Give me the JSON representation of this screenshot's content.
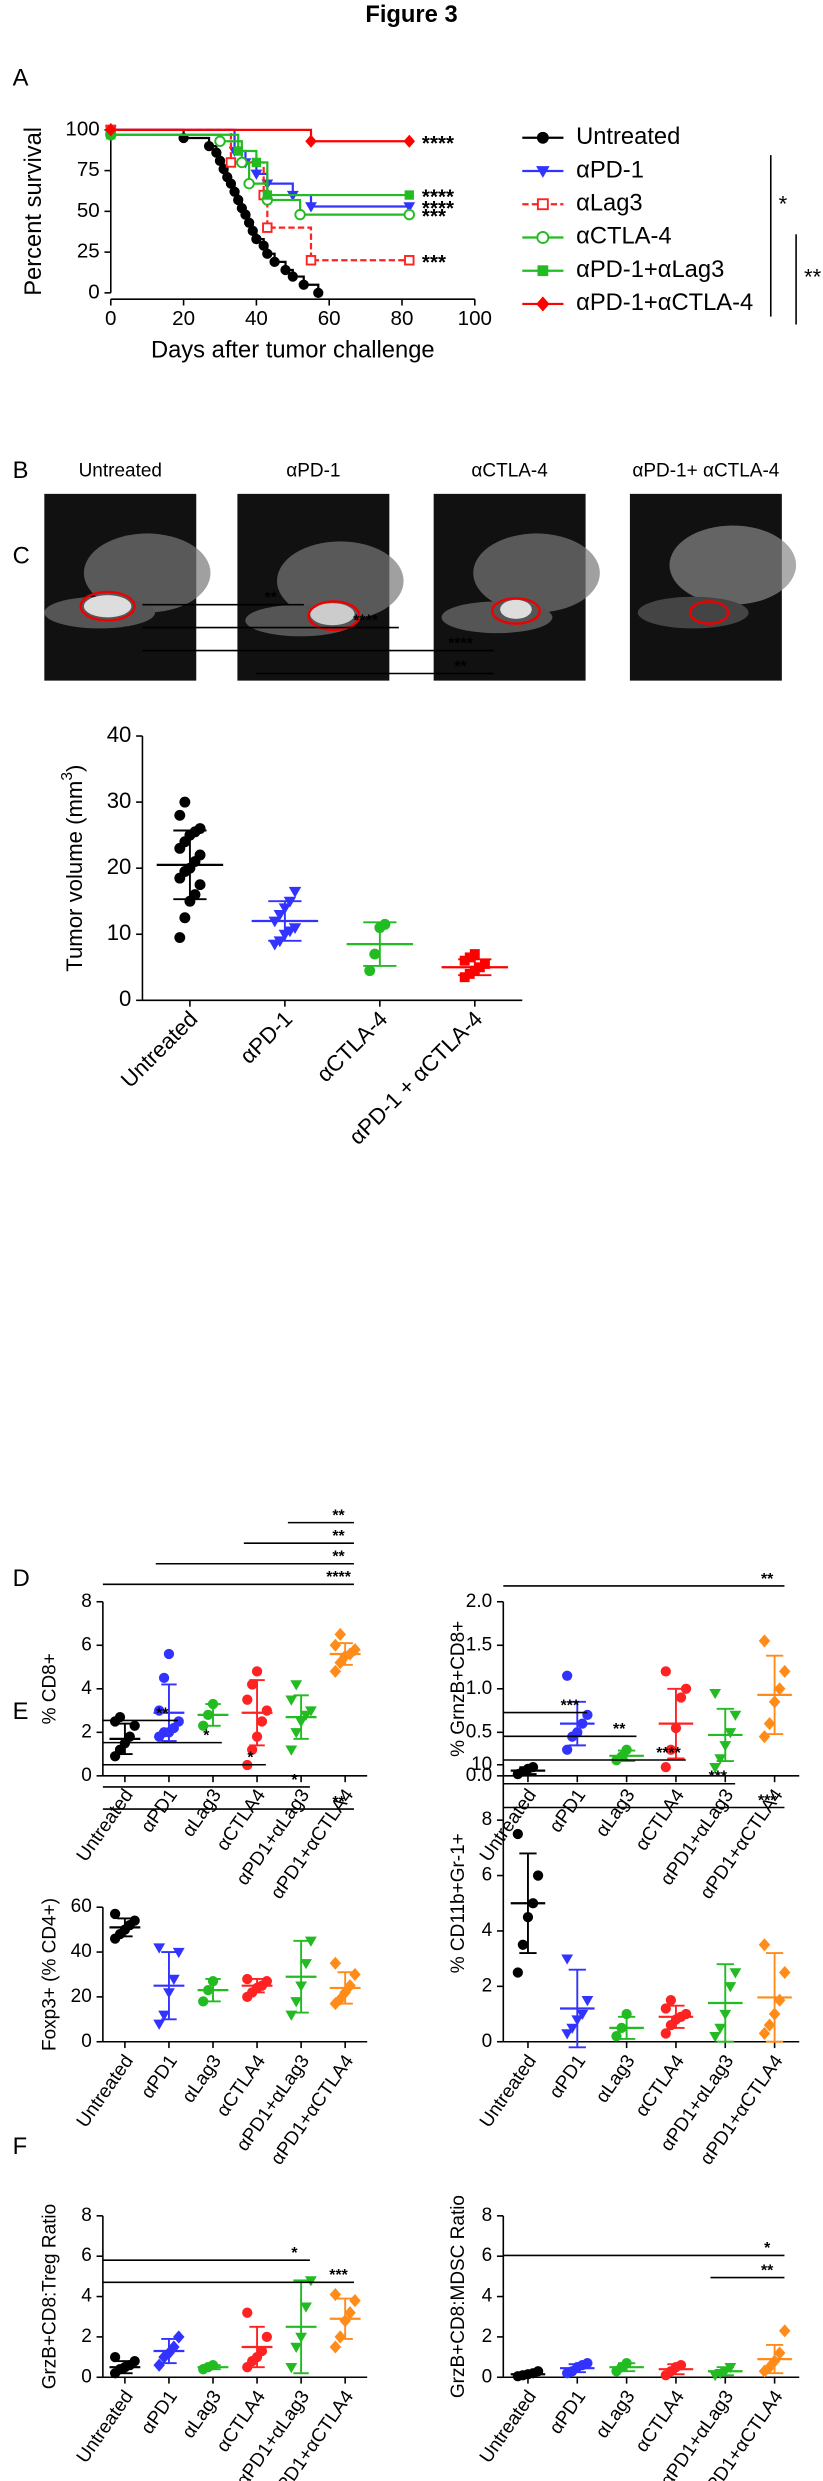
{
  "title": "Figure 3",
  "images": {
    "panel": "B",
    "labels": [
      "Untreated",
      "αPD-1",
      "αCTLA-4",
      "αPD-1+ αCTLA-4"
    ]
  },
  "chart_data": [
    {
      "type": "survival",
      "panel": "A",
      "x_label": "Days after tumor challenge",
      "y_label": "Percent survival",
      "xlim": [
        0,
        100
      ],
      "xticks": [
        0,
        20,
        40,
        60,
        80,
        100
      ],
      "ylim": [
        0,
        100
      ],
      "yticks": [
        0,
        25,
        50,
        75,
        100
      ],
      "significance": [
        "*",
        "**"
      ],
      "series": [
        {
          "name": "Untreated",
          "color": "#000000",
          "marker": "circle",
          "dashed": false,
          "x": [
            0,
            20,
            27,
            29,
            30,
            31,
            32,
            33,
            34,
            35,
            36,
            37,
            38,
            39,
            40,
            42,
            43,
            45,
            48,
            50,
            53,
            57
          ],
          "values": [
            100,
            95,
            90,
            86,
            81,
            76,
            71,
            67,
            62,
            57,
            52,
            48,
            43,
            38,
            33,
            29,
            24,
            19,
            14,
            10,
            5,
            0
          ]
        },
        {
          "name": "αPD-1",
          "color": "#3333ff",
          "marker": "triangle-down",
          "dashed": false,
          "annotation": "****",
          "x": [
            0,
            34,
            37,
            40,
            43,
            50,
            55,
            82
          ],
          "values": [
            100,
            87,
            80,
            73,
            67,
            60,
            53,
            53
          ]
        },
        {
          "name": "αLag3",
          "color": "#ff2222",
          "marker": "square-open",
          "dashed": true,
          "annotation": "***",
          "x": [
            0,
            33,
            42,
            43,
            55,
            82
          ],
          "values": [
            100,
            80,
            60,
            40,
            20,
            20
          ]
        },
        {
          "name": "αCTLA-4",
          "color": "#22bb22",
          "marker": "circle-open",
          "dashed": false,
          "annotation": "***",
          "x": [
            0,
            30,
            36,
            38,
            43,
            52,
            82
          ],
          "values": [
            97,
            93,
            80,
            67,
            57,
            48,
            48
          ]
        },
        {
          "name": "αPD-1+αLag3",
          "color": "#22bb22",
          "marker": "square",
          "dashed": false,
          "annotation": "****",
          "x": [
            0,
            35,
            40,
            43,
            82
          ],
          "values": [
            97,
            87,
            80,
            60,
            60
          ]
        },
        {
          "name": "αPD-1+αCTLA-4",
          "color": "#ff0000",
          "marker": "diamond",
          "dashed": false,
          "annotation": "****",
          "x": [
            0,
            55,
            82
          ],
          "values": [
            100,
            93,
            93
          ]
        }
      ]
    },
    {
      "type": "dotplot",
      "panel": "C",
      "y_label": {
        "text": "Tumor volume (mm",
        "sup": "3",
        "close": ")"
      },
      "categories": [
        "Untreated",
        "αPD-1",
        "αCTLA-4",
        "αPD-1 + αCTLA-4"
      ],
      "colors": [
        "#000000",
        "#3333ff",
        "#22bb22",
        "#ff0000"
      ],
      "markers": [
        "circle",
        "triangle-down",
        "circle",
        "square"
      ],
      "ylim": [
        0,
        40
      ],
      "yticks": [
        0,
        10,
        20,
        30,
        40
      ],
      "points": [
        [
          9.5,
          12.5,
          15,
          16,
          17.5,
          18.5,
          19.5,
          20,
          21,
          22,
          23,
          24,
          25,
          25.5,
          26,
          28,
          30
        ],
        [
          8.5,
          9,
          10,
          10.5,
          11,
          12,
          13,
          14,
          15,
          16.5
        ],
        [
          4.5,
          7,
          11,
          11.5
        ],
        [
          3.5,
          4,
          4.5,
          5,
          5.5,
          6,
          6.5,
          7
        ]
      ],
      "mean": [
        20.5,
        12,
        8.5,
        5
      ],
      "sd": [
        5.2,
        3,
        3.3,
        1.2
      ],
      "comparisons": [
        {
          "from": 0,
          "to": 1,
          "label": "**"
        },
        {
          "from": 0,
          "to": 2,
          "label": "****"
        },
        {
          "from": 0,
          "to": 3,
          "label": "****"
        },
        {
          "from": 1,
          "to": 3,
          "label": "**"
        }
      ]
    },
    {
      "type": "dotplot",
      "panel": "D",
      "y_label": {
        "text": "% CD8+"
      },
      "categories": [
        "Untreated",
        "αPD1",
        "αLag3",
        "αCTLA4",
        "αPD1+αLag3",
        "αPD1+αCTLA4"
      ],
      "colors": [
        "#000000",
        "#3333ff",
        "#22bb22",
        "#ff2222",
        "#22bb22",
        "#ff8c1a"
      ],
      "markers": [
        "circle",
        "circle",
        "circle",
        "circle",
        "triangle-down",
        "diamond"
      ],
      "ylim": [
        0,
        8
      ],
      "yticks": [
        0,
        2,
        4,
        6,
        8
      ],
      "points": [
        [
          0.9,
          1.2,
          1.5,
          1.8,
          2.3,
          2.5,
          2.7
        ],
        [
          1.8,
          2,
          2,
          2.2,
          2.5,
          3,
          4.5,
          5.6
        ],
        [
          2.3,
          2.8,
          3.3
        ],
        [
          0.5,
          1.2,
          1.8,
          2.5,
          3,
          3.5,
          4.2,
          4.8
        ],
        [
          1.2,
          2,
          2.5,
          2.8,
          3,
          3.5,
          4.2
        ],
        [
          4.8,
          5.2,
          5.5,
          5.6,
          5.8,
          6,
          6.5
        ]
      ],
      "mean": [
        1.7,
        2.9,
        2.8,
        2.9,
        2.7,
        5.6
      ],
      "sd": [
        0.7,
        1.3,
        0.5,
        1.5,
        1,
        0.5
      ],
      "comparisons": [
        {
          "from": 4,
          "to": 5,
          "label": "**"
        },
        {
          "from": 3,
          "to": 5,
          "label": "**"
        },
        {
          "from": 1,
          "to": 5,
          "label": "**"
        },
        {
          "from": 0,
          "to": 5,
          "label": "****"
        }
      ]
    },
    {
      "type": "dotplot",
      "y_label": {
        "text": "% GrnzB+CD8+"
      },
      "categories": [
        "Untreated",
        "αPD1",
        "αLag3",
        "αCTLA4",
        "αPD1+αLag3",
        "αPD1+αCTLA4"
      ],
      "colors": [
        "#000000",
        "#3333ff",
        "#22bb22",
        "#ff2222",
        "#22bb22",
        "#ff8c1a"
      ],
      "markers": [
        "circle",
        "circle",
        "circle",
        "circle",
        "triangle-down",
        "diamond"
      ],
      "ylim": [
        0,
        2
      ],
      "yticks": [
        {
          "value": 0,
          "label": "0.0"
        },
        {
          "value": 0.5,
          "label": "0.5"
        },
        {
          "value": 1,
          "label": "1.0"
        },
        {
          "value": 1.5,
          "label": "1.5"
        },
        {
          "value": 2,
          "label": "2.0"
        }
      ],
      "points": [
        [
          0.02,
          0.05,
          0.08,
          0.1
        ],
        [
          0.3,
          0.45,
          0.5,
          0.6,
          0.7,
          1.15
        ],
        [
          0.18,
          0.22,
          0.3
        ],
        [
          0.1,
          0.3,
          0.55,
          0.9,
          1,
          1.2
        ],
        [
          0.1,
          0.2,
          0.35,
          0.5,
          0.7,
          0.95
        ],
        [
          0.45,
          0.6,
          0.85,
          1,
          1.2,
          1.55
        ]
      ],
      "mean": [
        0.06,
        0.6,
        0.23,
        0.6,
        0.47,
        0.93
      ],
      "sd": [
        0.04,
        0.25,
        0.06,
        0.4,
        0.3,
        0.45
      ],
      "comparisons": [
        {
          "from": 0,
          "to": 5,
          "label": "**"
        }
      ]
    },
    {
      "type": "dotplot",
      "panel": "E",
      "y_label": {
        "text": "Foxp3+ (% CD4+)"
      },
      "categories": [
        "Untreated",
        "αPD1",
        "αLag3",
        "αCTLA4",
        "αPD1+αLag3",
        "αPD1+αCTLA4"
      ],
      "colors": [
        "#000000",
        "#3333ff",
        "#22bb22",
        "#ff2222",
        "#22bb22",
        "#ff8c1a"
      ],
      "markers": [
        "circle",
        "triangle-down",
        "circle",
        "circle",
        "triangle-down",
        "diamond"
      ],
      "ylim": [
        0,
        60
      ],
      "yticks": [
        0,
        20,
        40,
        60
      ],
      "points": [
        [
          46,
          48,
          50,
          52,
          54,
          57
        ],
        [
          8,
          12,
          22,
          28,
          40,
          42
        ],
        [
          18,
          23,
          27
        ],
        [
          20,
          22,
          24,
          25,
          27,
          28
        ],
        [
          12,
          18,
          25,
          35,
          45
        ],
        [
          17,
          19,
          22,
          25,
          30,
          35
        ]
      ],
      "mean": [
        51,
        25,
        23,
        25,
        29,
        24
      ],
      "sd": [
        4,
        15,
        5,
        3,
        16,
        7
      ],
      "comparisons": [
        {
          "from": 0,
          "to": 1,
          "label": "**"
        },
        {
          "from": 0,
          "to": 2,
          "label": "*"
        },
        {
          "from": 0,
          "to": 3,
          "label": "*"
        },
        {
          "from": 0,
          "to": 4,
          "label": "*"
        },
        {
          "from": 0,
          "to": 5,
          "label": "**"
        }
      ]
    },
    {
      "type": "dotplot",
      "y_label": {
        "text": "% CD11b+Gr-1+"
      },
      "categories": [
        "Untreated",
        "αPD1",
        "αLag3",
        "αCTLA4",
        "αPD1+αLag3",
        "αPD1+αCTLA4"
      ],
      "colors": [
        "#000000",
        "#3333ff",
        "#22bb22",
        "#ff2222",
        "#22bb22",
        "#ff8c1a"
      ],
      "markers": [
        "circle",
        "triangle-down",
        "circle",
        "circle",
        "triangle-down",
        "diamond"
      ],
      "ylim": [
        0,
        10
      ],
      "yticks": [
        0,
        2,
        4,
        6,
        8,
        10
      ],
      "points": [
        [
          2.5,
          3.5,
          4.5,
          5,
          6,
          7.5
        ],
        [
          0.3,
          0.5,
          0.8,
          1,
          1.5,
          3
        ],
        [
          0.2,
          0.5,
          1
        ],
        [
          0.3,
          0.6,
          0.8,
          0.9,
          1,
          1.2,
          1.5
        ],
        [
          0.2,
          0.5,
          1,
          2,
          2.5
        ],
        [
          0.3,
          0.6,
          1,
          1.5,
          2.5,
          3.5
        ]
      ],
      "mean": [
        5,
        1.2,
        0.5,
        0.9,
        1.4,
        1.6
      ],
      "sd": [
        1.8,
        1.4,
        0.4,
        0.4,
        1.4,
        1.6
      ],
      "comparisons": [
        {
          "from": 0,
          "to": 1,
          "label": "***"
        },
        {
          "from": 0,
          "to": 2,
          "label": "**"
        },
        {
          "from": 0,
          "to": 3,
          "label": "****"
        },
        {
          "from": 0,
          "to": 4,
          "label": "***"
        },
        {
          "from": 0,
          "to": 5,
          "label": "***"
        }
      ]
    },
    {
      "type": "dotplot",
      "panel": "F",
      "y_label": {
        "text": "GrzB+CD8:Treg Ratio"
      },
      "categories": [
        "Untreated",
        "αPD1",
        "αLag3",
        "αCTLA4",
        "αPD1+αLag3",
        "αPD1+αCTLA4"
      ],
      "colors": [
        "#000000",
        "#3333ff",
        "#22bb22",
        "#ff2222",
        "#22bb22",
        "#ff8c1a"
      ],
      "markers": [
        "circle",
        "diamond",
        "circle",
        "circle",
        "triangle-down",
        "diamond"
      ],
      "ylim": [
        0,
        8
      ],
      "yticks": [
        0,
        2,
        4,
        6,
        8
      ],
      "points": [
        [
          0.2,
          0.4,
          0.5,
          0.6,
          0.8,
          1
        ],
        [
          0.6,
          1,
          1.2,
          1.5,
          2
        ],
        [
          0.4,
          0.5,
          0.6
        ],
        [
          0.5,
          0.8,
          1,
          1.3,
          2,
          3.2
        ],
        [
          0.5,
          1.5,
          2,
          3.5,
          4.8
        ],
        [
          1.5,
          2,
          2.8,
          3.2,
          3.8,
          4.1
        ]
      ],
      "mean": [
        0.5,
        1.3,
        0.5,
        1.5,
        2.5,
        2.9
      ],
      "sd": [
        0.3,
        0.6,
        0.1,
        1,
        2.3,
        1
      ],
      "comparisons": [
        {
          "from": 0,
          "to": 4,
          "label": "*"
        },
        {
          "from": 0,
          "to": 5,
          "label": "***"
        }
      ]
    },
    {
      "type": "dotplot",
      "y_label": {
        "text": "GrzB+CD8:MDSC Ratio"
      },
      "categories": [
        "Untreated",
        "αPD1",
        "αLag3",
        "αCTLA4",
        "αPD1+αLag3",
        "αPD1+αCTLA4"
      ],
      "colors": [
        "#000000",
        "#3333ff",
        "#22bb22",
        "#ff2222",
        "#22bb22",
        "#ff8c1a"
      ],
      "markers": [
        "circle",
        "circle",
        "circle",
        "circle",
        "triangle-down",
        "diamond"
      ],
      "ylim": [
        0,
        8
      ],
      "yticks": [
        0,
        2,
        4,
        6,
        8
      ],
      "points": [
        [
          0.05,
          0.1,
          0.15,
          0.2,
          0.3
        ],
        [
          0.2,
          0.3,
          0.5,
          0.6,
          0.7
        ],
        [
          0.3,
          0.5,
          0.7
        ],
        [
          0.1,
          0.3,
          0.5,
          0.6
        ],
        [
          0.1,
          0.2,
          0.3,
          0.5
        ],
        [
          0.3,
          0.5,
          0.8,
          1.2,
          2.3
        ]
      ],
      "mean": [
        0.15,
        0.45,
        0.5,
        0.4,
        0.3,
        0.9
      ],
      "sd": [
        0.1,
        0.2,
        0.2,
        0.25,
        0.2,
        0.7
      ],
      "comparisons": [
        {
          "from": 0,
          "to": 5,
          "label": "*"
        },
        {
          "from": 4,
          "to": 5,
          "label": "**"
        }
      ]
    }
  ]
}
